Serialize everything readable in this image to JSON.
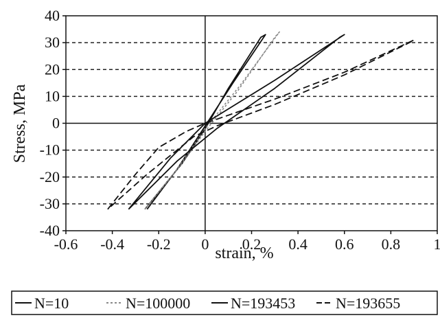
{
  "chart_data": {
    "type": "line",
    "title": "",
    "xlabel": "strain, %",
    "ylabel": "Stress, MPa",
    "xlim": [
      -0.6,
      1
    ],
    "ylim": [
      -40,
      40
    ],
    "x_ticks": [
      -0.6,
      -0.4,
      -0.2,
      0,
      0.2,
      0.4,
      0.6,
      0.8,
      1
    ],
    "x_tick_labels": [
      "-0.6",
      "-0.4",
      "-0.2",
      "0",
      "0.2",
      "0.4",
      "0.6",
      "0.8",
      "1"
    ],
    "y_ticks": [
      -40,
      -30,
      -20,
      -10,
      0,
      10,
      20,
      30,
      40
    ],
    "y_tick_labels": [
      "-40",
      "-30",
      "-20",
      "-10",
      "0",
      "10",
      "20",
      "30",
      "40"
    ],
    "grid": "dashed horizontal",
    "legend_position": "bottom",
    "series": [
      {
        "name": "N=10",
        "style": "solid",
        "color": "#111111",
        "x": [
          -0.25,
          -0.12,
          0,
          0.12,
          0.26,
          0.24,
          0.1,
          0,
          -0.1,
          -0.26
        ],
        "y": [
          -32,
          -17,
          -1,
          15,
          33,
          32,
          13,
          -2,
          -15,
          -32
        ]
      },
      {
        "name": "N=100000",
        "style": "dotted",
        "color": "#888888",
        "x": [
          -0.26,
          -0.12,
          0,
          0.15,
          0.32,
          0.3,
          0.14,
          0,
          -0.1,
          -0.26
        ],
        "y": [
          -32,
          -17,
          -2,
          14,
          34,
          32,
          12,
          -3,
          -15,
          -32
        ]
      },
      {
        "name": "N=193453",
        "style": "solid",
        "color": "#111111",
        "x": [
          -0.33,
          -0.15,
          0,
          0.3,
          0.6,
          0.58,
          0.3,
          0.05,
          -0.12,
          -0.33
        ],
        "y": [
          -32,
          -13,
          0,
          16,
          33,
          32,
          13,
          -2,
          -14,
          -32
        ]
      },
      {
        "name": "N=193655",
        "style": "dashed",
        "color": "#111111",
        "x": [
          -0.42,
          -0.3,
          -0.2,
          -0.08,
          0,
          0.3,
          0.6,
          0.9,
          0.88,
          0.6,
          0.3,
          0.05,
          -0.05,
          -0.25,
          -0.42
        ],
        "y": [
          -32,
          -19,
          -9,
          -3,
          0,
          9,
          19,
          31,
          30,
          18,
          7,
          -1,
          -5,
          -19,
          -32
        ]
      }
    ]
  }
}
